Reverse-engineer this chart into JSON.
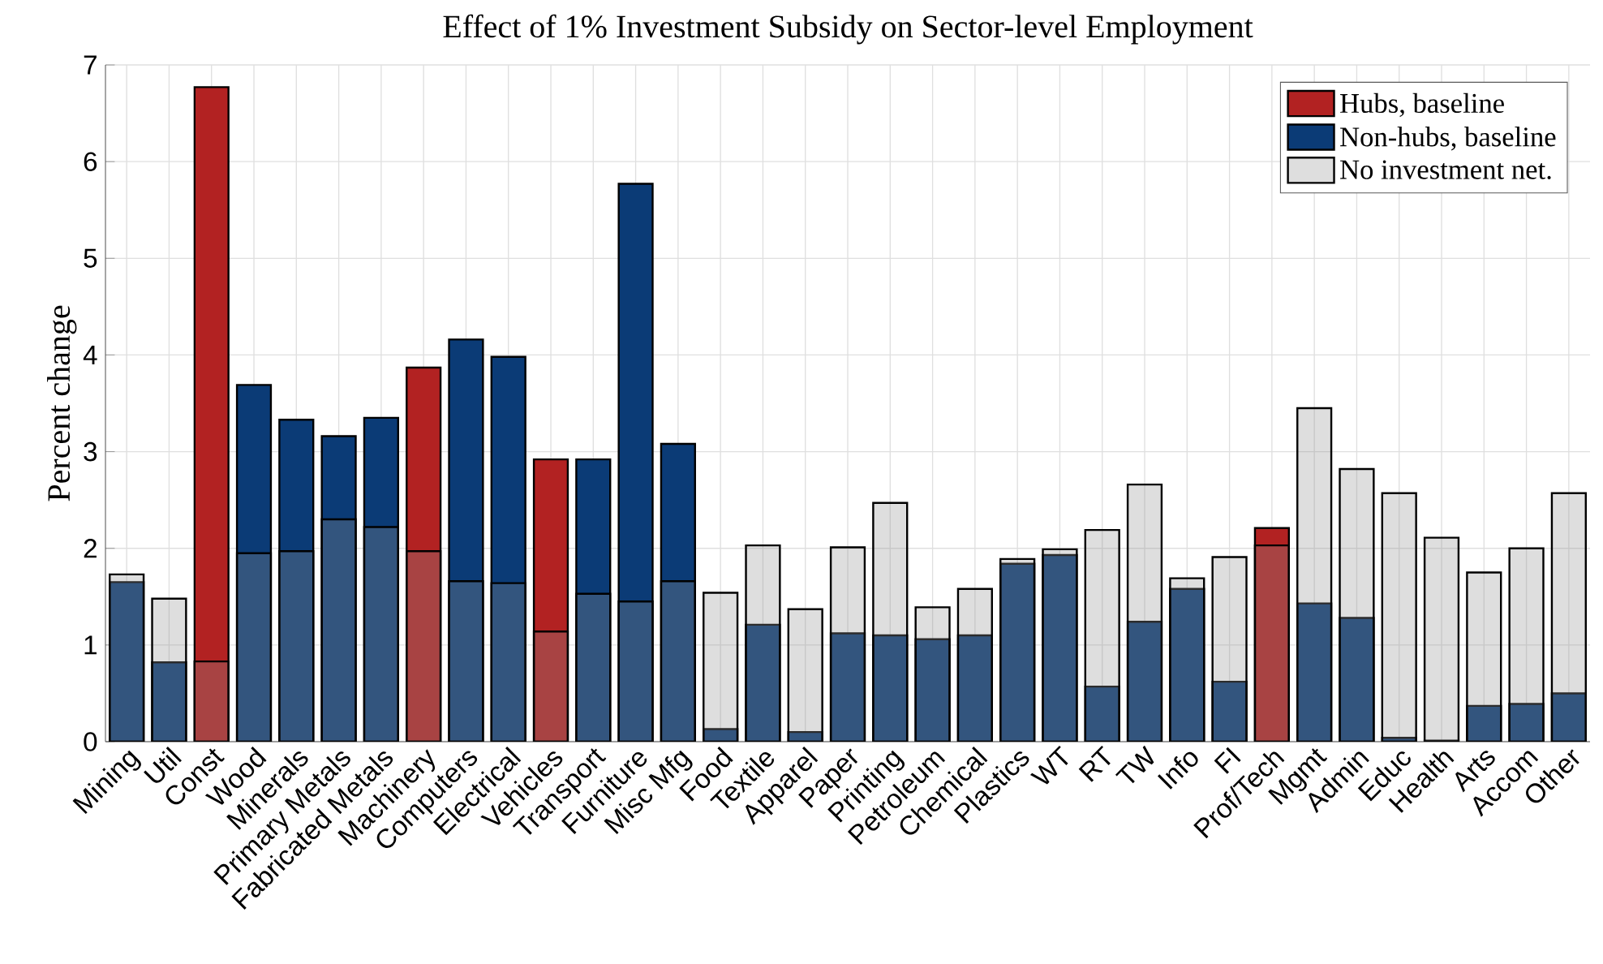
{
  "chart_data": {
    "type": "bar",
    "title": "Effect of 1% Investment Subsidy on Sector-level Employment",
    "ylabel": "Percent change",
    "categories": [
      "Mining",
      "Util",
      "Const",
      "Wood",
      "Minerals",
      "Primary Metals",
      "Fabricated Metals",
      "Machinery",
      "Computers",
      "Electrical",
      "Vehicles",
      "Transport",
      "Furniture",
      "Misc Mfg",
      "Food",
      "Textile",
      "Apparel",
      "Paper",
      "Printing",
      "Petroleum",
      "Chemical",
      "Plastics",
      "WT",
      "RT",
      "TW",
      "Info",
      "FI",
      "Prof/Tech",
      "Mgmt",
      "Admin",
      "Educ",
      "Health",
      "Arts",
      "Accom",
      "Other"
    ],
    "series": [
      {
        "name": "Hubs, baseline",
        "color": "#b22222",
        "values": [
          null,
          null,
          6.77,
          null,
          null,
          null,
          null,
          3.87,
          null,
          null,
          2.92,
          null,
          null,
          null,
          null,
          null,
          null,
          null,
          null,
          null,
          null,
          null,
          null,
          null,
          null,
          null,
          null,
          2.21,
          null,
          null,
          null,
          null,
          null,
          null,
          null
        ]
      },
      {
        "name": "Non-hubs, baseline",
        "color": "#0b3b76",
        "values": [
          1.65,
          0.82,
          null,
          3.69,
          3.33,
          3.16,
          3.35,
          null,
          4.16,
          3.98,
          null,
          2.92,
          5.77,
          3.08,
          0.13,
          1.21,
          0.1,
          1.12,
          1.1,
          1.06,
          1.1,
          1.84,
          1.93,
          0.57,
          1.24,
          1.58,
          0.62,
          null,
          1.43,
          1.28,
          0.04,
          0.01,
          0.37,
          0.39,
          0.5
        ]
      },
      {
        "name": "No investment net.",
        "color": "#dedede",
        "values": [
          1.73,
          1.48,
          0.83,
          1.95,
          1.97,
          2.3,
          2.22,
          1.97,
          1.66,
          1.64,
          1.14,
          1.53,
          1.45,
          1.66,
          1.54,
          2.03,
          1.37,
          2.01,
          2.47,
          1.39,
          1.58,
          1.89,
          1.99,
          2.19,
          2.66,
          1.69,
          1.91,
          2.03,
          3.45,
          2.82,
          2.57,
          2.11,
          1.75,
          2.0,
          2.57
        ]
      }
    ],
    "ylim": [
      0,
      7
    ],
    "yticks": [
      0,
      1,
      2,
      3,
      4,
      5,
      6,
      7
    ],
    "grid": true,
    "legend": "top right"
  }
}
